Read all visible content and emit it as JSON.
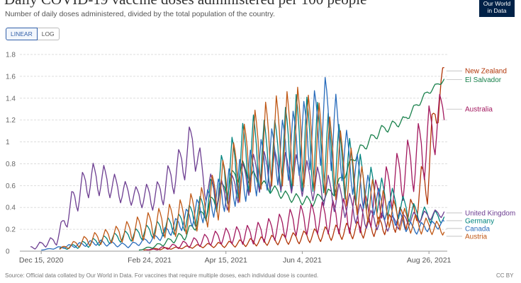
{
  "header": {
    "title": "Daily COVID-19 vaccine doses administered per 100 people",
    "subtitle": "Number of daily doses administered, divided by the total population of the country.",
    "logo_line1": "Our World",
    "logo_line2": "in Data"
  },
  "toggles": {
    "linear_label": "LINEAR",
    "log_label": "LOG"
  },
  "footer": {
    "source": "Source: Official data collated by Our World in Data. For vaccines that require multiple doses, each individual dose is counted.",
    "license": "CC BY"
  },
  "chart_data": {
    "type": "line",
    "title": "Daily COVID-19 vaccine doses administered per 100 people",
    "ylim": [
      0,
      1.8
    ],
    "yticks": [
      "0",
      "0.2",
      "0.4",
      "0.6",
      "0.8",
      "1",
      "1.2",
      "1.4",
      "1.6",
      "1.8"
    ],
    "xlim": [
      "2020-12-01",
      "2021-09-07"
    ],
    "xticks": [
      {
        "date": "2020-12-15",
        "label": "Dec 15, 2020"
      },
      {
        "date": "2021-02-24",
        "label": "Feb 24, 2021"
      },
      {
        "date": "2021-04-15",
        "label": "Apr 15, 2021"
      },
      {
        "date": "2021-06-04",
        "label": "Jun 4, 2021"
      },
      {
        "date": "2021-08-26",
        "label": "Aug 26, 2021"
      }
    ],
    "grid": true,
    "legend": "right-end labels",
    "series": [
      {
        "name": "New Zealand",
        "color": "#b13507",
        "x": [
          "2021-02-20",
          "2021-03-01",
          "2021-03-15",
          "2021-04-01",
          "2021-04-15",
          "2021-05-01",
          "2021-05-15",
          "2021-06-01",
          "2021-06-15",
          "2021-07-01",
          "2021-07-15",
          "2021-08-01",
          "2021-08-15",
          "2021-08-25",
          "2021-09-01",
          "2021-09-05"
        ],
        "y": [
          0.01,
          0.02,
          0.03,
          0.05,
          0.06,
          0.08,
          0.1,
          0.12,
          0.15,
          0.18,
          0.2,
          0.25,
          0.35,
          0.7,
          1.4,
          1.65
        ],
        "amp": [
          0,
          0.01,
          0.01,
          0.02,
          0.03,
          0.04,
          0.05,
          0.06,
          0.07,
          0.08,
          0.09,
          0.1,
          0.15,
          0.3,
          0.25,
          0.05
        ]
      },
      {
        "name": "El Salvador",
        "color": "#18804b",
        "x": [
          "2021-02-17",
          "2021-03-01",
          "2021-03-20",
          "2021-04-10",
          "2021-04-25",
          "2021-05-10",
          "2021-05-25",
          "2021-06-10",
          "2021-06-25",
          "2021-07-10",
          "2021-07-25",
          "2021-08-10",
          "2021-08-25",
          "2021-09-05"
        ],
        "y": [
          0.01,
          0.05,
          0.15,
          0.5,
          0.75,
          0.6,
          0.5,
          0.45,
          0.55,
          0.9,
          1.1,
          1.2,
          1.45,
          1.57
        ],
        "amp": [
          0,
          0.02,
          0.05,
          0.1,
          0.1,
          0.05,
          0.05,
          0.05,
          0.05,
          0.05,
          0.05,
          0.04,
          0.03,
          0.02
        ]
      },
      {
        "name": "Australia",
        "color": "#a2185e",
        "x": [
          "2021-02-22",
          "2021-03-01",
          "2021-03-15",
          "2021-04-01",
          "2021-04-15",
          "2021-05-01",
          "2021-05-15",
          "2021-06-01",
          "2021-06-15",
          "2021-07-01",
          "2021-07-15",
          "2021-08-01",
          "2021-08-15",
          "2021-08-25",
          "2021-09-05"
        ],
        "y": [
          0.01,
          0.02,
          0.05,
          0.1,
          0.14,
          0.15,
          0.2,
          0.28,
          0.3,
          0.32,
          0.35,
          0.6,
          0.8,
          1.0,
          1.3
        ],
        "amp": [
          0,
          0.01,
          0.03,
          0.06,
          0.08,
          0.1,
          0.12,
          0.15,
          0.16,
          0.18,
          0.2,
          0.25,
          0.3,
          0.35,
          0.2
        ]
      },
      {
        "name": "Germany",
        "color": "#00847e",
        "x": [
          "2020-12-27",
          "2021-01-15",
          "2021-02-01",
          "2021-02-15",
          "2021-03-01",
          "2021-03-15",
          "2021-04-01",
          "2021-04-15",
          "2021-05-01",
          "2021-05-15",
          "2021-06-01",
          "2021-06-15",
          "2021-07-01",
          "2021-07-15",
          "2021-08-01",
          "2021-08-15",
          "2021-09-05"
        ],
        "y": [
          0.02,
          0.07,
          0.12,
          0.15,
          0.2,
          0.25,
          0.4,
          0.7,
          0.9,
          0.85,
          1.0,
          0.95,
          0.8,
          0.6,
          0.45,
          0.35,
          0.3
        ],
        "amp": [
          0.01,
          0.04,
          0.05,
          0.06,
          0.08,
          0.1,
          0.15,
          0.3,
          0.4,
          0.35,
          0.5,
          0.45,
          0.35,
          0.25,
          0.15,
          0.1,
          0.05
        ]
      },
      {
        "name": "United Kingdom",
        "color": "#6d3e91",
        "x": [
          "2020-12-08",
          "2020-12-25",
          "2021-01-05",
          "2021-01-15",
          "2021-01-25",
          "2021-02-05",
          "2021-02-15",
          "2021-03-01",
          "2021-03-15",
          "2021-03-25",
          "2021-04-01",
          "2021-04-15",
          "2021-05-01",
          "2021-05-15",
          "2021-06-01",
          "2021-06-15",
          "2021-07-01",
          "2021-07-15",
          "2021-08-01",
          "2021-08-15",
          "2021-09-05"
        ],
        "y": [
          0.03,
          0.1,
          0.45,
          0.65,
          0.65,
          0.55,
          0.5,
          0.5,
          0.75,
          1.0,
          0.6,
          0.5,
          0.7,
          0.75,
          0.7,
          0.6,
          0.45,
          0.3,
          0.25,
          0.3,
          0.35
        ],
        "amp": [
          0.02,
          0.05,
          0.15,
          0.18,
          0.15,
          0.12,
          0.1,
          0.15,
          0.2,
          0.25,
          0.15,
          0.15,
          0.2,
          0.2,
          0.2,
          0.18,
          0.15,
          0.1,
          0.08,
          0.06,
          0.04
        ]
      },
      {
        "name": "Canada",
        "color": "#286bbb",
        "x": [
          "2020-12-15",
          "2021-01-05",
          "2021-01-20",
          "2021-02-10",
          "2021-03-01",
          "2021-03-15",
          "2021-04-01",
          "2021-04-15",
          "2021-05-01",
          "2021-05-15",
          "2021-06-01",
          "2021-06-15",
          "2021-06-22",
          "2021-07-01",
          "2021-07-15",
          "2021-08-01",
          "2021-08-15",
          "2021-09-05"
        ],
        "y": [
          0.01,
          0.05,
          0.08,
          0.05,
          0.12,
          0.25,
          0.4,
          0.55,
          0.7,
          0.85,
          1.0,
          1.15,
          1.2,
          0.9,
          0.55,
          0.35,
          0.2,
          0.25
        ],
        "amp": [
          0,
          0.02,
          0.03,
          0.02,
          0.04,
          0.08,
          0.15,
          0.2,
          0.25,
          0.3,
          0.35,
          0.4,
          0.5,
          0.3,
          0.2,
          0.1,
          0.06,
          0.04
        ]
      },
      {
        "name": "Austria",
        "color": "#c05917",
        "x": [
          "2020-12-27",
          "2021-01-15",
          "2021-02-01",
          "2021-02-15",
          "2021-03-01",
          "2021-03-15",
          "2021-04-01",
          "2021-04-15",
          "2021-05-01",
          "2021-05-15",
          "2021-06-01",
          "2021-06-15",
          "2021-07-01",
          "2021-07-15",
          "2021-08-01",
          "2021-08-15",
          "2021-09-05"
        ],
        "y": [
          0.02,
          0.1,
          0.15,
          0.2,
          0.25,
          0.3,
          0.4,
          0.6,
          0.9,
          1.0,
          1.05,
          0.95,
          0.75,
          0.5,
          0.35,
          0.25,
          0.2
        ],
        "amp": [
          0.01,
          0.06,
          0.08,
          0.12,
          0.15,
          0.18,
          0.22,
          0.3,
          0.4,
          0.45,
          0.5,
          0.45,
          0.35,
          0.25,
          0.15,
          0.1,
          0.06
        ]
      }
    ]
  }
}
